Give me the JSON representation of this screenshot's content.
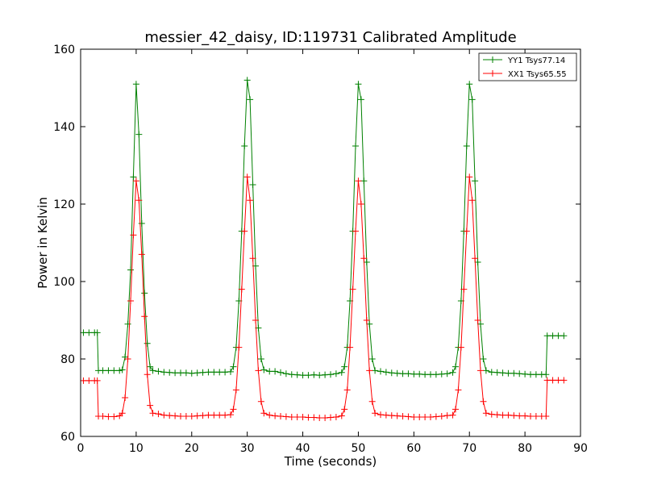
{
  "chart_data": {
    "type": "line",
    "title": "messier_42_daisy, ID:119731 Calibrated Amplitude",
    "xlabel": "Time (seconds)",
    "ylabel": "Power in Kelvin",
    "xlim": [
      0,
      90
    ],
    "ylim": [
      60,
      160
    ],
    "xticks": [
      0,
      10,
      20,
      30,
      40,
      50,
      60,
      70,
      80,
      90
    ],
    "yticks": [
      60,
      80,
      100,
      120,
      140,
      160
    ],
    "grid": false,
    "legend_position": "top-right",
    "marker": "+",
    "series": [
      {
        "name": "YY1 Tsys77.14",
        "color": "#008000",
        "points": [
          [
            0.5,
            86.8
          ],
          [
            1.5,
            86.8
          ],
          [
            2.5,
            86.8
          ],
          [
            3.0,
            86.8
          ],
          [
            3.2,
            77.0
          ],
          [
            4,
            77.0
          ],
          [
            5,
            77.0
          ],
          [
            6,
            77.0
          ],
          [
            7,
            77.0
          ],
          [
            7.5,
            77.2
          ],
          [
            8.0,
            80.5
          ],
          [
            8.5,
            89.0
          ],
          [
            9.0,
            103.0
          ],
          [
            9.5,
            127.0
          ],
          [
            10.0,
            151.0
          ],
          [
            10.5,
            138.0
          ],
          [
            11.0,
            115.0
          ],
          [
            11.5,
            97.0
          ],
          [
            12.0,
            84.0
          ],
          [
            12.5,
            78.0
          ],
          [
            13,
            77.0
          ],
          [
            14,
            76.8
          ],
          [
            15,
            76.6
          ],
          [
            16,
            76.5
          ],
          [
            17,
            76.4
          ],
          [
            18,
            76.4
          ],
          [
            19,
            76.4
          ],
          [
            20,
            76.3
          ],
          [
            21,
            76.4
          ],
          [
            22,
            76.5
          ],
          [
            23,
            76.6
          ],
          [
            24,
            76.6
          ],
          [
            25,
            76.6
          ],
          [
            26,
            76.6
          ],
          [
            27,
            76.7
          ],
          [
            27.5,
            78.0
          ],
          [
            28.0,
            83.0
          ],
          [
            28.5,
            95.0
          ],
          [
            29.0,
            113.0
          ],
          [
            29.5,
            135.0
          ],
          [
            30.0,
            152.0
          ],
          [
            30.5,
            147.0
          ],
          [
            31.0,
            125.0
          ],
          [
            31.5,
            104.0
          ],
          [
            32.0,
            88.0
          ],
          [
            32.5,
            80.0
          ],
          [
            33,
            77.2
          ],
          [
            34,
            76.8
          ],
          [
            35,
            76.8
          ],
          [
            36,
            76.5
          ],
          [
            37,
            76.2
          ],
          [
            38,
            76.0
          ],
          [
            39,
            75.9
          ],
          [
            40,
            75.8
          ],
          [
            41,
            75.8
          ],
          [
            42,
            75.9
          ],
          [
            43,
            75.8
          ],
          [
            44,
            75.9
          ],
          [
            45,
            76.0
          ],
          [
            46,
            76.2
          ],
          [
            47,
            76.5
          ],
          [
            47.5,
            78.0
          ],
          [
            48.0,
            83.0
          ],
          [
            48.5,
            95.0
          ],
          [
            49.0,
            113.0
          ],
          [
            49.5,
            135.0
          ],
          [
            50.0,
            151.0
          ],
          [
            50.5,
            147.0
          ],
          [
            51.0,
            126.0
          ],
          [
            51.5,
            105.0
          ],
          [
            52.0,
            89.0
          ],
          [
            52.5,
            80.0
          ],
          [
            53,
            77.0
          ],
          [
            54,
            76.8
          ],
          [
            55,
            76.6
          ],
          [
            56,
            76.4
          ],
          [
            57,
            76.3
          ],
          [
            58,
            76.2
          ],
          [
            59,
            76.2
          ],
          [
            60,
            76.1
          ],
          [
            61,
            76.1
          ],
          [
            62,
            76.0
          ],
          [
            63,
            76.0
          ],
          [
            64,
            76.0
          ],
          [
            65,
            76.1
          ],
          [
            66,
            76.2
          ],
          [
            67,
            76.5
          ],
          [
            67.5,
            78.0
          ],
          [
            68.0,
            83.0
          ],
          [
            68.5,
            95.0
          ],
          [
            69.0,
            113.0
          ],
          [
            69.5,
            135.0
          ],
          [
            70.0,
            151.0
          ],
          [
            70.5,
            147.0
          ],
          [
            71.0,
            126.0
          ],
          [
            71.5,
            105.0
          ],
          [
            72.0,
            89.0
          ],
          [
            72.5,
            80.0
          ],
          [
            73,
            77.0
          ],
          [
            74,
            76.6
          ],
          [
            75,
            76.5
          ],
          [
            76,
            76.4
          ],
          [
            77,
            76.3
          ],
          [
            78,
            76.3
          ],
          [
            79,
            76.2
          ],
          [
            80,
            76.1
          ],
          [
            81,
            76.0
          ],
          [
            82,
            76.0
          ],
          [
            83,
            76.0
          ],
          [
            83.8,
            76.0
          ],
          [
            84.0,
            86.0
          ],
          [
            85,
            86.0
          ],
          [
            86,
            86.0
          ],
          [
            87,
            86.0
          ]
        ]
      },
      {
        "name": "XX1 Tsys65.55",
        "color": "#ff0000",
        "points": [
          [
            0.5,
            74.4
          ],
          [
            1.5,
            74.4
          ],
          [
            2.5,
            74.4
          ],
          [
            3.0,
            74.4
          ],
          [
            3.2,
            65.2
          ],
          [
            4,
            65.2
          ],
          [
            5,
            65.1
          ],
          [
            6,
            65.1
          ],
          [
            7,
            65.3
          ],
          [
            7.5,
            66.0
          ],
          [
            8.0,
            70.0
          ],
          [
            8.5,
            80.0
          ],
          [
            9.0,
            95.0
          ],
          [
            9.5,
            112.0
          ],
          [
            10.0,
            126.0
          ],
          [
            10.5,
            121.0
          ],
          [
            11.0,
            107.0
          ],
          [
            11.5,
            91.0
          ],
          [
            12.0,
            76.0
          ],
          [
            12.5,
            68.0
          ],
          [
            13,
            66.0
          ],
          [
            14,
            65.8
          ],
          [
            15,
            65.5
          ],
          [
            16,
            65.4
          ],
          [
            17,
            65.3
          ],
          [
            18,
            65.2
          ],
          [
            19,
            65.2
          ],
          [
            20,
            65.2
          ],
          [
            21,
            65.3
          ],
          [
            22,
            65.4
          ],
          [
            23,
            65.5
          ],
          [
            24,
            65.5
          ],
          [
            25,
            65.5
          ],
          [
            26,
            65.5
          ],
          [
            27,
            65.6
          ],
          [
            27.5,
            67.0
          ],
          [
            28.0,
            72.0
          ],
          [
            28.5,
            83.0
          ],
          [
            29.0,
            98.0
          ],
          [
            29.5,
            113.0
          ],
          [
            30.0,
            127.0
          ],
          [
            30.5,
            121.0
          ],
          [
            31.0,
            106.0
          ],
          [
            31.5,
            90.0
          ],
          [
            32.0,
            77.0
          ],
          [
            32.5,
            69.0
          ],
          [
            33,
            66.0
          ],
          [
            34,
            65.5
          ],
          [
            35,
            65.3
          ],
          [
            36,
            65.2
          ],
          [
            37,
            65.1
          ],
          [
            38,
            65.0
          ],
          [
            39,
            65.0
          ],
          [
            40,
            65.0
          ],
          [
            41,
            64.9
          ],
          [
            42,
            64.9
          ],
          [
            43,
            64.8
          ],
          [
            44,
            64.8
          ],
          [
            45,
            64.9
          ],
          [
            46,
            65.0
          ],
          [
            47,
            65.3
          ],
          [
            47.5,
            67.0
          ],
          [
            48.0,
            72.0
          ],
          [
            48.5,
            83.0
          ],
          [
            49.0,
            98.0
          ],
          [
            49.5,
            113.0
          ],
          [
            50.0,
            126.0
          ],
          [
            50.5,
            120.0
          ],
          [
            51.0,
            106.0
          ],
          [
            51.5,
            90.0
          ],
          [
            52.0,
            77.0
          ],
          [
            52.5,
            69.0
          ],
          [
            53,
            66.0
          ],
          [
            54,
            65.6
          ],
          [
            55,
            65.5
          ],
          [
            56,
            65.4
          ],
          [
            57,
            65.3
          ],
          [
            58,
            65.2
          ],
          [
            59,
            65.1
          ],
          [
            60,
            65.0
          ],
          [
            61,
            65.0
          ],
          [
            62,
            65.0
          ],
          [
            63,
            65.0
          ],
          [
            64,
            65.1
          ],
          [
            65,
            65.2
          ],
          [
            66,
            65.4
          ],
          [
            67,
            65.5
          ],
          [
            67.5,
            67.0
          ],
          [
            68.0,
            72.0
          ],
          [
            68.5,
            83.0
          ],
          [
            69.0,
            98.0
          ],
          [
            69.5,
            113.0
          ],
          [
            70.0,
            127.0
          ],
          [
            70.5,
            121.0
          ],
          [
            71.0,
            106.0
          ],
          [
            71.5,
            90.0
          ],
          [
            72.0,
            77.0
          ],
          [
            72.5,
            69.0
          ],
          [
            73,
            66.0
          ],
          [
            74,
            65.7
          ],
          [
            75,
            65.6
          ],
          [
            76,
            65.5
          ],
          [
            77,
            65.5
          ],
          [
            78,
            65.4
          ],
          [
            79,
            65.3
          ],
          [
            80,
            65.3
          ],
          [
            81,
            65.2
          ],
          [
            82,
            65.2
          ],
          [
            83,
            65.2
          ],
          [
            83.8,
            65.2
          ],
          [
            84.0,
            74.5
          ],
          [
            85,
            74.5
          ],
          [
            86,
            74.5
          ],
          [
            87,
            74.5
          ]
        ]
      }
    ]
  }
}
